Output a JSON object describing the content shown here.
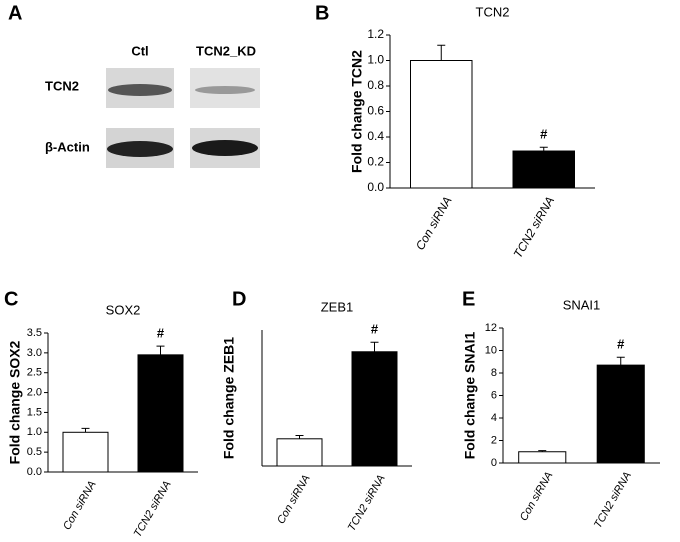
{
  "blot": {
    "panel_label": "A",
    "columns": [
      "Ctl",
      "TCN2_KD"
    ],
    "rows": [
      "TCN2",
      "β-Actin"
    ]
  },
  "chart_data": [
    {
      "type": "bar",
      "panel_label": "B",
      "title": "TCN2",
      "y_label": "Fold change TCN2",
      "categories": [
        "Con siRNA",
        "TCN2 siRNA"
      ],
      "values": [
        1.0,
        0.29
      ],
      "errors": [
        0.12,
        0.03
      ],
      "colors": [
        "#ffffff",
        "#000000"
      ],
      "annotation": "#",
      "ylim": [
        0,
        1.2
      ],
      "yticks": [
        {
          "value": 0,
          "label": "0.0"
        },
        0.2,
        0.4,
        0.6,
        0.8,
        {
          "value": 1,
          "label": "1.0"
        },
        1.2
      ]
    },
    {
      "type": "bar",
      "panel_label": "C",
      "title": "SOX2",
      "y_label": "Fold change SOX2",
      "categories": [
        "Con siRNA",
        "TCN2 siRNA"
      ],
      "values": [
        1.0,
        2.95
      ],
      "errors": [
        0.1,
        0.22
      ],
      "colors": [
        "#ffffff",
        "#000000"
      ],
      "annotation": "#",
      "ylim": [
        0,
        3.5
      ],
      "yticks": [
        {
          "value": 0,
          "label": "0.0"
        },
        0.5,
        {
          "value": 1,
          "label": "1.0"
        },
        1.5,
        {
          "value": 2,
          "label": "2.0"
        },
        2.5,
        {
          "value": 3,
          "label": "3.0"
        },
        3.5
      ]
    },
    {
      "type": "bar",
      "panel_label": "D",
      "title": "ZEB1",
      "y_label": "Fold change ZEB1",
      "categories": [
        "Con siRNA",
        "TCN2 siRNA"
      ],
      "values": [
        1.0,
        4.2
      ],
      "errors": [
        0.12,
        0.35
      ],
      "colors": [
        "#ffffff",
        "#000000"
      ],
      "annotation": "#",
      "ylim": [
        0,
        5
      ]
    },
    {
      "type": "bar",
      "panel_label": "E",
      "title": "SNAI1",
      "y_label": "Fold change SNAI1",
      "categories": [
        "Con siRNA",
        "TCN2 siRNA"
      ],
      "values": [
        1.0,
        8.7
      ],
      "errors": [
        0.1,
        0.7
      ],
      "colors": [
        "#ffffff",
        "#000000"
      ],
      "annotation": "#",
      "ylim": [
        0,
        12
      ],
      "yticks": [
        0,
        2,
        4,
        6,
        8,
        10,
        12
      ]
    }
  ]
}
